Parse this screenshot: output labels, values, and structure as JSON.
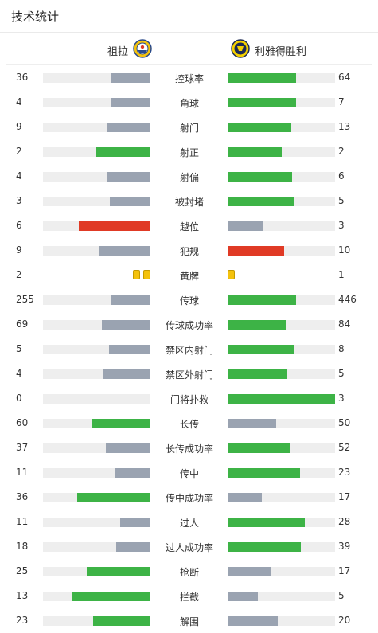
{
  "title": "技术统计",
  "team_left": {
    "name": "祖拉",
    "logo_icon": "zulia-crest-icon"
  },
  "team_right": {
    "name": "利雅得胜利",
    "logo_icon": "al-nassr-crest-icon"
  },
  "colors": {
    "green": "#3db346",
    "gray": "#9aa3b1",
    "red": "#e03a25",
    "track": "#eeeeee",
    "yellow": "#f4c20d"
  },
  "stats": [
    {
      "label": "控球率",
      "left": 36,
      "right": 64,
      "left_color": "gray",
      "right_color": "green"
    },
    {
      "label": "角球",
      "left": 4,
      "right": 7,
      "left_color": "gray",
      "right_color": "green"
    },
    {
      "label": "射门",
      "left": 9,
      "right": 13,
      "left_color": "gray",
      "right_color": "green"
    },
    {
      "label": "射正",
      "left": 2,
      "right": 2,
      "left_color": "green",
      "right_color": "green"
    },
    {
      "label": "射偏",
      "left": 4,
      "right": 6,
      "left_color": "gray",
      "right_color": "green"
    },
    {
      "label": "被封堵",
      "left": 3,
      "right": 5,
      "left_color": "gray",
      "right_color": "green"
    },
    {
      "label": "越位",
      "left": 6,
      "right": 3,
      "left_color": "red",
      "right_color": "gray"
    },
    {
      "label": "犯规",
      "left": 9,
      "right": 10,
      "left_color": "gray",
      "right_color": "red"
    },
    {
      "label": "黄牌",
      "left": 2,
      "right": 1,
      "type": "cards"
    },
    {
      "label": "传球",
      "left": 255,
      "right": 446,
      "left_color": "gray",
      "right_color": "green"
    },
    {
      "label": "传球成功率",
      "left": 69,
      "right": 84,
      "left_color": "gray",
      "right_color": "green"
    },
    {
      "label": "禁区内射门",
      "left": 5,
      "right": 8,
      "left_color": "gray",
      "right_color": "green"
    },
    {
      "label": "禁区外射门",
      "left": 4,
      "right": 5,
      "left_color": "gray",
      "right_color": "green"
    },
    {
      "label": "门将扑救",
      "left": 0,
      "right": 3,
      "left_color": "gray",
      "right_color": "green"
    },
    {
      "label": "长传",
      "left": 60,
      "right": 50,
      "left_color": "green",
      "right_color": "gray"
    },
    {
      "label": "长传成功率",
      "left": 37,
      "right": 52,
      "left_color": "gray",
      "right_color": "green"
    },
    {
      "label": "传中",
      "left": 11,
      "right": 23,
      "left_color": "gray",
      "right_color": "green"
    },
    {
      "label": "传中成功率",
      "left": 36,
      "right": 17,
      "left_color": "green",
      "right_color": "gray"
    },
    {
      "label": "过人",
      "left": 11,
      "right": 28,
      "left_color": "gray",
      "right_color": "green"
    },
    {
      "label": "过人成功率",
      "left": 18,
      "right": 39,
      "left_color": "gray",
      "right_color": "green"
    },
    {
      "label": "抢断",
      "left": 25,
      "right": 17,
      "left_color": "green",
      "right_color": "gray"
    },
    {
      "label": "拦截",
      "left": 13,
      "right": 5,
      "left_color": "green",
      "right_color": "gray"
    },
    {
      "label": "解围",
      "left": 23,
      "right": 20,
      "left_color": "green",
      "right_color": "gray"
    }
  ]
}
